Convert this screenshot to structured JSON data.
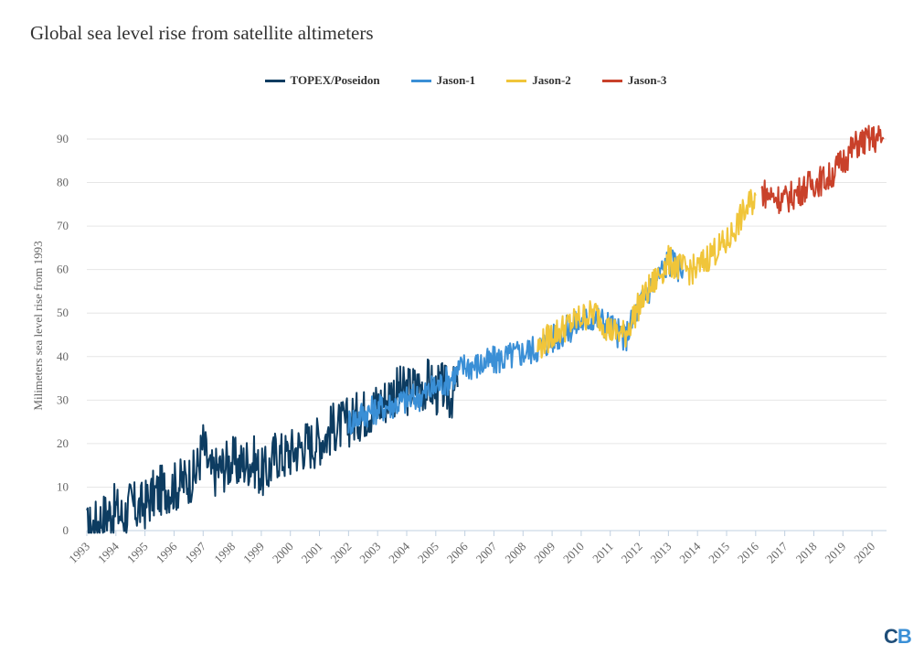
{
  "chart_data": {
    "type": "line",
    "title": "Global sea level rise from satellite altimeters",
    "ylabel": "Milimeters sea level rise from 1993",
    "xlabel": "",
    "ylim": [
      0,
      90
    ],
    "xlim": [
      1993,
      2020.5
    ],
    "yticks": [
      0,
      10,
      20,
      30,
      40,
      50,
      60,
      70,
      80,
      90
    ],
    "xticks": [
      "1993",
      "1994",
      "1995",
      "1996",
      "1997",
      "1998",
      "1999",
      "2000",
      "2001",
      "2002",
      "2003",
      "2004",
      "2005",
      "2006",
      "2007",
      "2008",
      "2009",
      "2010",
      "2011",
      "2012",
      "2013",
      "2014",
      "2015",
      "2016",
      "2017",
      "2018",
      "2019",
      "2020"
    ],
    "grid": "horizontal",
    "legend_position": "top-center",
    "series": [
      {
        "name": "TOPEX/Poseidon",
        "color": "#0d3c61",
        "x": [
          1993.0,
          1993.25,
          1993.5,
          1993.75,
          1994.0,
          1994.25,
          1994.5,
          1994.75,
          1995.0,
          1995.25,
          1995.5,
          1995.75,
          1996.0,
          1996.25,
          1996.5,
          1996.75,
          1997.0,
          1997.25,
          1997.5,
          1997.75,
          1998.0,
          1998.25,
          1998.5,
          1998.75,
          1999.0,
          1999.25,
          1999.5,
          1999.75,
          2000.0,
          2000.25,
          2000.5,
          2000.75,
          2001.0,
          2001.25,
          2001.5,
          2001.75,
          2002.0,
          2002.25,
          2002.5,
          2002.75,
          2003.0,
          2003.25,
          2003.5,
          2003.75,
          2004.0,
          2004.25,
          2004.5,
          2004.75,
          2005.0,
          2005.25,
          2005.5,
          2005.75
        ],
        "y": [
          0,
          1,
          3,
          4,
          5,
          3,
          6,
          5,
          6,
          8,
          9,
          10,
          10,
          11,
          12,
          13,
          20,
          13,
          14,
          15,
          16,
          15,
          16,
          16,
          13,
          14,
          18,
          17,
          18,
          19,
          20,
          20,
          21,
          22,
          24,
          24,
          25,
          26,
          27,
          28,
          29,
          30,
          32,
          32,
          32,
          33,
          33,
          34,
          32,
          33,
          31,
          33
        ]
      },
      {
        "name": "Jason-1",
        "color": "#3a8fd6",
        "x": [
          2002.0,
          2002.5,
          2003.0,
          2003.5,
          2004.0,
          2004.5,
          2005.0,
          2005.5,
          2006.0,
          2006.5,
          2007.0,
          2007.5,
          2008.0,
          2008.5,
          2009.0,
          2009.5,
          2010.0,
          2010.5,
          2011.0,
          2011.5,
          2012.0,
          2012.5,
          2013.0,
          2013.5
        ],
        "y": [
          25,
          27,
          28,
          29,
          30,
          31,
          33,
          35,
          38,
          38,
          39,
          40,
          41,
          42,
          44,
          46,
          48,
          49,
          47,
          44,
          52,
          57,
          62,
          60
        ]
      },
      {
        "name": "Jason-2",
        "color": "#f0c53a",
        "x": [
          2008.5,
          2009.0,
          2009.5,
          2010.0,
          2010.5,
          2011.0,
          2011.5,
          2012.0,
          2012.5,
          2013.0,
          2013.5,
          2014.0,
          2014.5,
          2015.0,
          2015.5,
          2016.0
        ],
        "y": [
          42,
          45,
          47,
          49,
          50,
          46,
          45,
          52,
          57,
          62,
          60,
          60,
          64,
          66,
          72,
          77
        ]
      },
      {
        "name": "Jason-3",
        "color": "#c9412a",
        "x": [
          2016.2,
          2016.5,
          2017.0,
          2017.5,
          2018.0,
          2018.5,
          2019.0,
          2019.5,
          2020.0,
          2020.4
        ],
        "y": [
          78,
          77,
          76,
          78,
          80,
          81,
          85,
          89,
          90,
          90
        ]
      }
    ]
  },
  "watermark": "CB"
}
